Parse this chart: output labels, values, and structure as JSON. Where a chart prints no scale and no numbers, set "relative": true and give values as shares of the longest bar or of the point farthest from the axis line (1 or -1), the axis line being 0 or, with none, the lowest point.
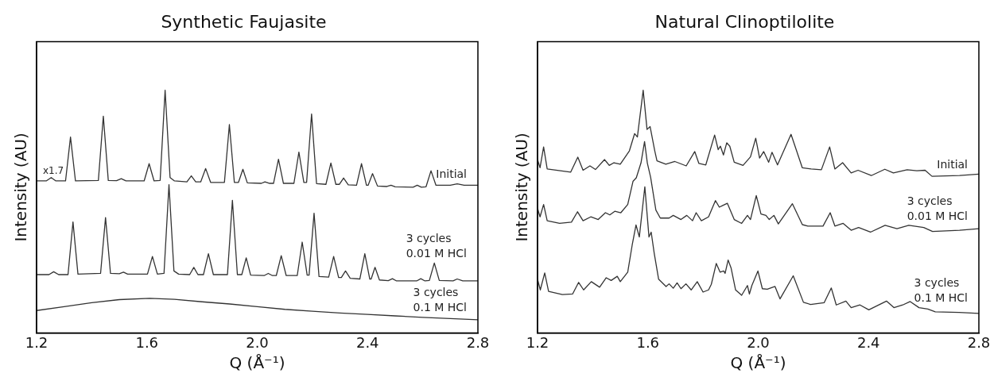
{
  "chart_data": [
    {
      "type": "line",
      "title": "Synthetic Faujasite",
      "xlabel": "Q (Å⁻¹)",
      "ylabel": "Intensity (AU)",
      "relative": true,
      "marker": "none",
      "xlim": [
        1.2,
        2.8
      ],
      "xticks": [
        1.2,
        1.6,
        {
          "value": 2,
          "label": "2.0"
        },
        2.4,
        2.8
      ],
      "series": [
        {
          "name": "Initial",
          "color": "#333333",
          "x": [
            1.2,
            1.235,
            1.253,
            1.27,
            1.305,
            1.323,
            1.341,
            1.424,
            1.442,
            1.46,
            1.49,
            1.507,
            1.524,
            1.59,
            1.608,
            1.626,
            1.648,
            1.666,
            1.684,
            1.7,
            1.745,
            1.761,
            1.777,
            1.795,
            1.813,
            1.831,
            1.881,
            1.899,
            1.917,
            1.932,
            1.948,
            1.964,
            2.015,
            2.028,
            2.045,
            2.059,
            2.077,
            2.095,
            2.133,
            2.151,
            2.169,
            2.179,
            2.197,
            2.215,
            2.249,
            2.267,
            2.285,
            2.298,
            2.313,
            2.33,
            2.36,
            2.378,
            2.396,
            2.402,
            2.418,
            2.436,
            2.47,
            2.485,
            2.5,
            2.565,
            2.58,
            2.595,
            2.612,
            2.63,
            2.648,
            2.7,
            2.725,
            2.75,
            2.8
          ],
          "values": [
            0.626,
            0.626,
            0.64,
            0.626,
            0.626,
            0.807,
            0.626,
            0.628,
            0.893,
            0.628,
            0.627,
            0.635,
            0.626,
            0.626,
            0.697,
            0.626,
            0.628,
            1.0,
            0.64,
            0.626,
            0.622,
            0.647,
            0.622,
            0.622,
            0.677,
            0.62,
            0.62,
            0.858,
            0.62,
            0.62,
            0.674,
            0.618,
            0.616,
            0.622,
            0.616,
            0.616,
            0.715,
            0.616,
            0.616,
            0.745,
            0.62,
            0.62,
            0.902,
            0.615,
            0.612,
            0.7,
            0.612,
            0.612,
            0.638,
            0.61,
            0.608,
            0.697,
            0.608,
            0.608,
            0.656,
            0.605,
            0.603,
            0.608,
            0.602,
            0.6,
            0.608,
            0.6,
            0.602,
            0.668,
            0.608,
            0.608,
            0.614,
            0.608,
            0.608
          ]
        },
        {
          "name": "3 cycles\n0.01 M HCl",
          "color": "#333333",
          "x": [
            1.2,
            1.245,
            1.262,
            1.28,
            1.314,
            1.332,
            1.35,
            1.432,
            1.45,
            1.468,
            1.5,
            1.515,
            1.53,
            1.602,
            1.62,
            1.638,
            1.662,
            1.68,
            1.698,
            1.715,
            1.755,
            1.77,
            1.785,
            1.805,
            1.823,
            1.841,
            1.892,
            1.91,
            1.928,
            1.944,
            1.96,
            1.976,
            2.025,
            2.04,
            2.055,
            2.069,
            2.087,
            2.105,
            2.145,
            2.163,
            2.181,
            2.188,
            2.206,
            2.224,
            2.259,
            2.277,
            2.295,
            2.305,
            2.32,
            2.337,
            2.372,
            2.39,
            2.408,
            2.413,
            2.427,
            2.443,
            2.475,
            2.49,
            2.505,
            2.578,
            2.593,
            2.608,
            2.624,
            2.642,
            2.66,
            2.71,
            2.725,
            2.745,
            2.8
          ],
          "values": [
            0.24,
            0.24,
            0.252,
            0.24,
            0.24,
            0.457,
            0.242,
            0.245,
            0.475,
            0.245,
            0.244,
            0.25,
            0.242,
            0.242,
            0.315,
            0.242,
            0.245,
            0.611,
            0.255,
            0.242,
            0.24,
            0.27,
            0.24,
            0.24,
            0.326,
            0.24,
            0.24,
            0.546,
            0.24,
            0.24,
            0.309,
            0.238,
            0.236,
            0.245,
            0.236,
            0.236,
            0.318,
            0.236,
            0.236,
            0.374,
            0.238,
            0.238,
            0.493,
            0.232,
            0.23,
            0.315,
            0.228,
            0.228,
            0.255,
            0.225,
            0.222,
            0.326,
            0.222,
            0.222,
            0.27,
            0.218,
            0.215,
            0.223,
            0.214,
            0.214,
            0.223,
            0.214,
            0.216,
            0.288,
            0.216,
            0.214,
            0.222,
            0.214,
            0.214
          ]
        },
        {
          "name": "3 cycles\n0.1 M HCl",
          "color": "#333333",
          "x": [
            1.2,
            1.3,
            1.4,
            1.5,
            1.61,
            1.7,
            1.8,
            1.9,
            2.0,
            2.1,
            2.2,
            2.3,
            2.4,
            2.5,
            2.6,
            2.7,
            2.8
          ],
          "values": [
            0.092,
            0.108,
            0.124,
            0.137,
            0.142,
            0.138,
            0.128,
            0.119,
            0.108,
            0.097,
            0.089,
            0.082,
            0.076,
            0.07,
            0.064,
            0.059,
            0.054
          ]
        }
      ],
      "annotations": [
        "x1.7"
      ]
    },
    {
      "type": "line",
      "title": "Natural Clinoptilolite",
      "xlabel": "Q (Å⁻¹)",
      "ylabel": "Intensity (AU)",
      "relative": true,
      "marker": "none",
      "xlim": [
        1.2,
        2.8
      ],
      "xticks": [
        1.2,
        1.6,
        {
          "value": 2,
          "label": "2.0"
        },
        2.4,
        2.8
      ],
      "series": [
        {
          "name": "Initial",
          "color": "#333333",
          "x": [
            1.2,
            1.209,
            1.222,
            1.235,
            1.32,
            1.346,
            1.365,
            1.39,
            1.41,
            1.443,
            1.46,
            1.477,
            1.5,
            1.533,
            1.552,
            1.562,
            1.583,
            1.597,
            1.608,
            1.625,
            1.633,
            1.665,
            1.698,
            1.739,
            1.77,
            1.785,
            1.81,
            1.842,
            1.855,
            1.863,
            1.874,
            1.886,
            1.897,
            1.913,
            1.945,
            1.972,
            1.991,
            2.005,
            2.02,
            2.038,
            2.05,
            2.07,
            2.119,
            2.16,
            2.192,
            2.229,
            2.259,
            2.278,
            2.306,
            2.337,
            2.362,
            2.41,
            2.459,
            2.49,
            2.54,
            2.575,
            2.605,
            2.63,
            2.73,
            2.8
          ],
          "values": [
            0.714,
            0.68,
            0.766,
            0.675,
            0.662,
            0.724,
            0.67,
            0.688,
            0.673,
            0.714,
            0.69,
            0.701,
            0.695,
            0.75,
            0.821,
            0.807,
            1.0,
            0.838,
            0.85,
            0.75,
            0.709,
            0.695,
            0.706,
            0.688,
            0.747,
            0.698,
            0.692,
            0.815,
            0.755,
            0.769,
            0.733,
            0.783,
            0.769,
            0.703,
            0.69,
            0.725,
            0.802,
            0.72,
            0.747,
            0.703,
            0.744,
            0.692,
            0.818,
            0.68,
            0.675,
            0.672,
            0.766,
            0.675,
            0.701,
            0.659,
            0.67,
            0.648,
            0.674,
            0.659,
            0.672,
            0.668,
            0.67,
            0.645,
            0.648,
            0.654
          ]
        },
        {
          "name": "3 cycles\n0.01 M HCl",
          "color": "#333333",
          "x": [
            1.2,
            1.209,
            1.222,
            1.235,
            1.28,
            1.323,
            1.345,
            1.365,
            1.393,
            1.42,
            1.446,
            1.462,
            1.48,
            1.502,
            1.527,
            1.546,
            1.558,
            1.575,
            1.588,
            1.598,
            1.61,
            1.629,
            1.645,
            1.677,
            1.692,
            1.72,
            1.741,
            1.762,
            1.775,
            1.794,
            1.82,
            1.845,
            1.859,
            1.87,
            1.888,
            1.913,
            1.94,
            1.961,
            1.972,
            1.993,
            2.01,
            2.028,
            2.04,
            2.057,
            2.073,
            2.124,
            2.16,
            2.18,
            2.235,
            2.261,
            2.278,
            2.308,
            2.337,
            2.364,
            2.407,
            2.46,
            2.503,
            2.546,
            2.6,
            2.632,
            2.73,
            2.8
          ],
          "values": [
            0.513,
            0.478,
            0.529,
            0.462,
            0.451,
            0.456,
            0.499,
            0.462,
            0.478,
            0.467,
            0.495,
            0.486,
            0.501,
            0.495,
            0.529,
            0.624,
            0.639,
            0.7,
            0.788,
            0.7,
            0.641,
            0.506,
            0.473,
            0.473,
            0.484,
            0.467,
            0.484,
            0.462,
            0.495,
            0.462,
            0.478,
            0.545,
            0.518,
            0.524,
            0.534,
            0.467,
            0.451,
            0.484,
            0.467,
            0.566,
            0.49,
            0.484,
            0.467,
            0.484,
            0.449,
            0.532,
            0.446,
            0.44,
            0.44,
            0.495,
            0.44,
            0.451,
            0.423,
            0.434,
            0.415,
            0.443,
            0.429,
            0.443,
            0.434,
            0.418,
            0.423,
            0.429
          ]
        },
        {
          "name": "3 cycles\n0.1 M HCl",
          "color": "#333333",
          "x": [
            1.2,
            1.21,
            1.226,
            1.24,
            1.29,
            1.327,
            1.349,
            1.367,
            1.395,
            1.425,
            1.449,
            1.467,
            1.489,
            1.5,
            1.527,
            1.543,
            1.557,
            1.569,
            1.589,
            1.604,
            1.612,
            1.623,
            1.639,
            1.666,
            1.677,
            1.692,
            1.706,
            1.72,
            1.738,
            1.757,
            1.779,
            1.8,
            1.82,
            1.83,
            1.848,
            1.862,
            1.875,
            1.88,
            1.891,
            1.902,
            1.918,
            1.94,
            1.961,
            1.968,
            1.977,
            1.999,
            2.015,
            2.033,
            2.061,
            2.079,
            2.127,
            2.164,
            2.19,
            2.239,
            2.265,
            2.283,
            2.318,
            2.337,
            2.369,
            2.401,
            2.465,
            2.492,
            2.524,
            2.551,
            2.583,
            2.615,
            2.642,
            2.728,
            2.8
          ],
          "values": [
            0.221,
            0.177,
            0.247,
            0.171,
            0.158,
            0.16,
            0.208,
            0.177,
            0.211,
            0.188,
            0.227,
            0.216,
            0.233,
            0.211,
            0.25,
            0.361,
            0.445,
            0.395,
            0.602,
            0.395,
            0.415,
            0.328,
            0.221,
            0.191,
            0.202,
            0.184,
            0.206,
            0.182,
            0.202,
            0.177,
            0.211,
            0.168,
            0.177,
            0.2,
            0.286,
            0.25,
            0.255,
            0.245,
            0.3,
            0.266,
            0.177,
            0.155,
            0.195,
            0.16,
            0.195,
            0.255,
            0.182,
            0.18,
            0.191,
            0.14,
            0.235,
            0.126,
            0.117,
            0.124,
            0.185,
            0.115,
            0.131,
            0.104,
            0.115,
            0.095,
            0.131,
            0.104,
            0.115,
            0.129,
            0.104,
            0.098,
            0.087,
            0.084,
            0.08
          ]
        }
      ]
    }
  ]
}
